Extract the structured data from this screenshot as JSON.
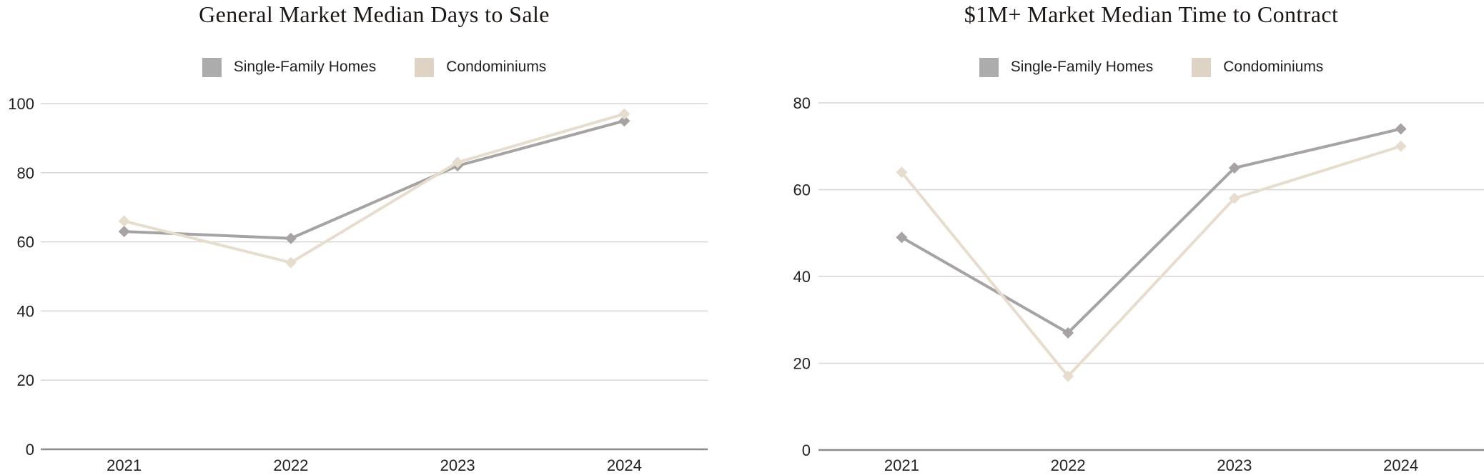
{
  "page": {
    "background": "#ffffff"
  },
  "theme": {
    "grid_color": "#d8d6d4",
    "axis_line_color": "#8e8c8a",
    "tick_label_color": "#222222",
    "title_color": "#1b1816",
    "legend_text_color": "#222222"
  },
  "chart_data": [
    {
      "type": "line",
      "title": "General Market Median Days to Sale",
      "categories": [
        "2021",
        "2022",
        "2023",
        "2024"
      ],
      "series": [
        {
          "name": "Single-Family Homes",
          "values": [
            63,
            61,
            82,
            95
          ],
          "color": "#a6a3a2",
          "swatch_color": "#acacac"
        },
        {
          "name": "Condominiums",
          "values": [
            66,
            54,
            83,
            97
          ],
          "color": "#e7ddce",
          "swatch_color": "#ded3c5"
        }
      ],
      "xlabel": "",
      "ylabel": "",
      "ylim": [
        0,
        100
      ],
      "yticks": [
        0,
        20,
        40,
        60,
        80,
        100
      ],
      "grid": true,
      "marker": "diamond",
      "legend_position": "top-center"
    },
    {
      "type": "line",
      "title": "$1M+ Market Median Time to Contract",
      "categories": [
        "2021",
        "2022",
        "2023",
        "2024"
      ],
      "series": [
        {
          "name": "Single-Family Homes",
          "values": [
            49,
            27,
            65,
            74
          ],
          "color": "#a6a3a2",
          "swatch_color": "#acacac"
        },
        {
          "name": "Condominiums",
          "values": [
            64,
            17,
            58,
            70
          ],
          "color": "#e7ddce",
          "swatch_color": "#ded3c5"
        }
      ],
      "xlabel": "",
      "ylabel": "",
      "ylim": [
        0,
        80
      ],
      "yticks": [
        0,
        20,
        40,
        60,
        80
      ],
      "grid": true,
      "marker": "diamond",
      "legend_position": "top-center"
    }
  ]
}
